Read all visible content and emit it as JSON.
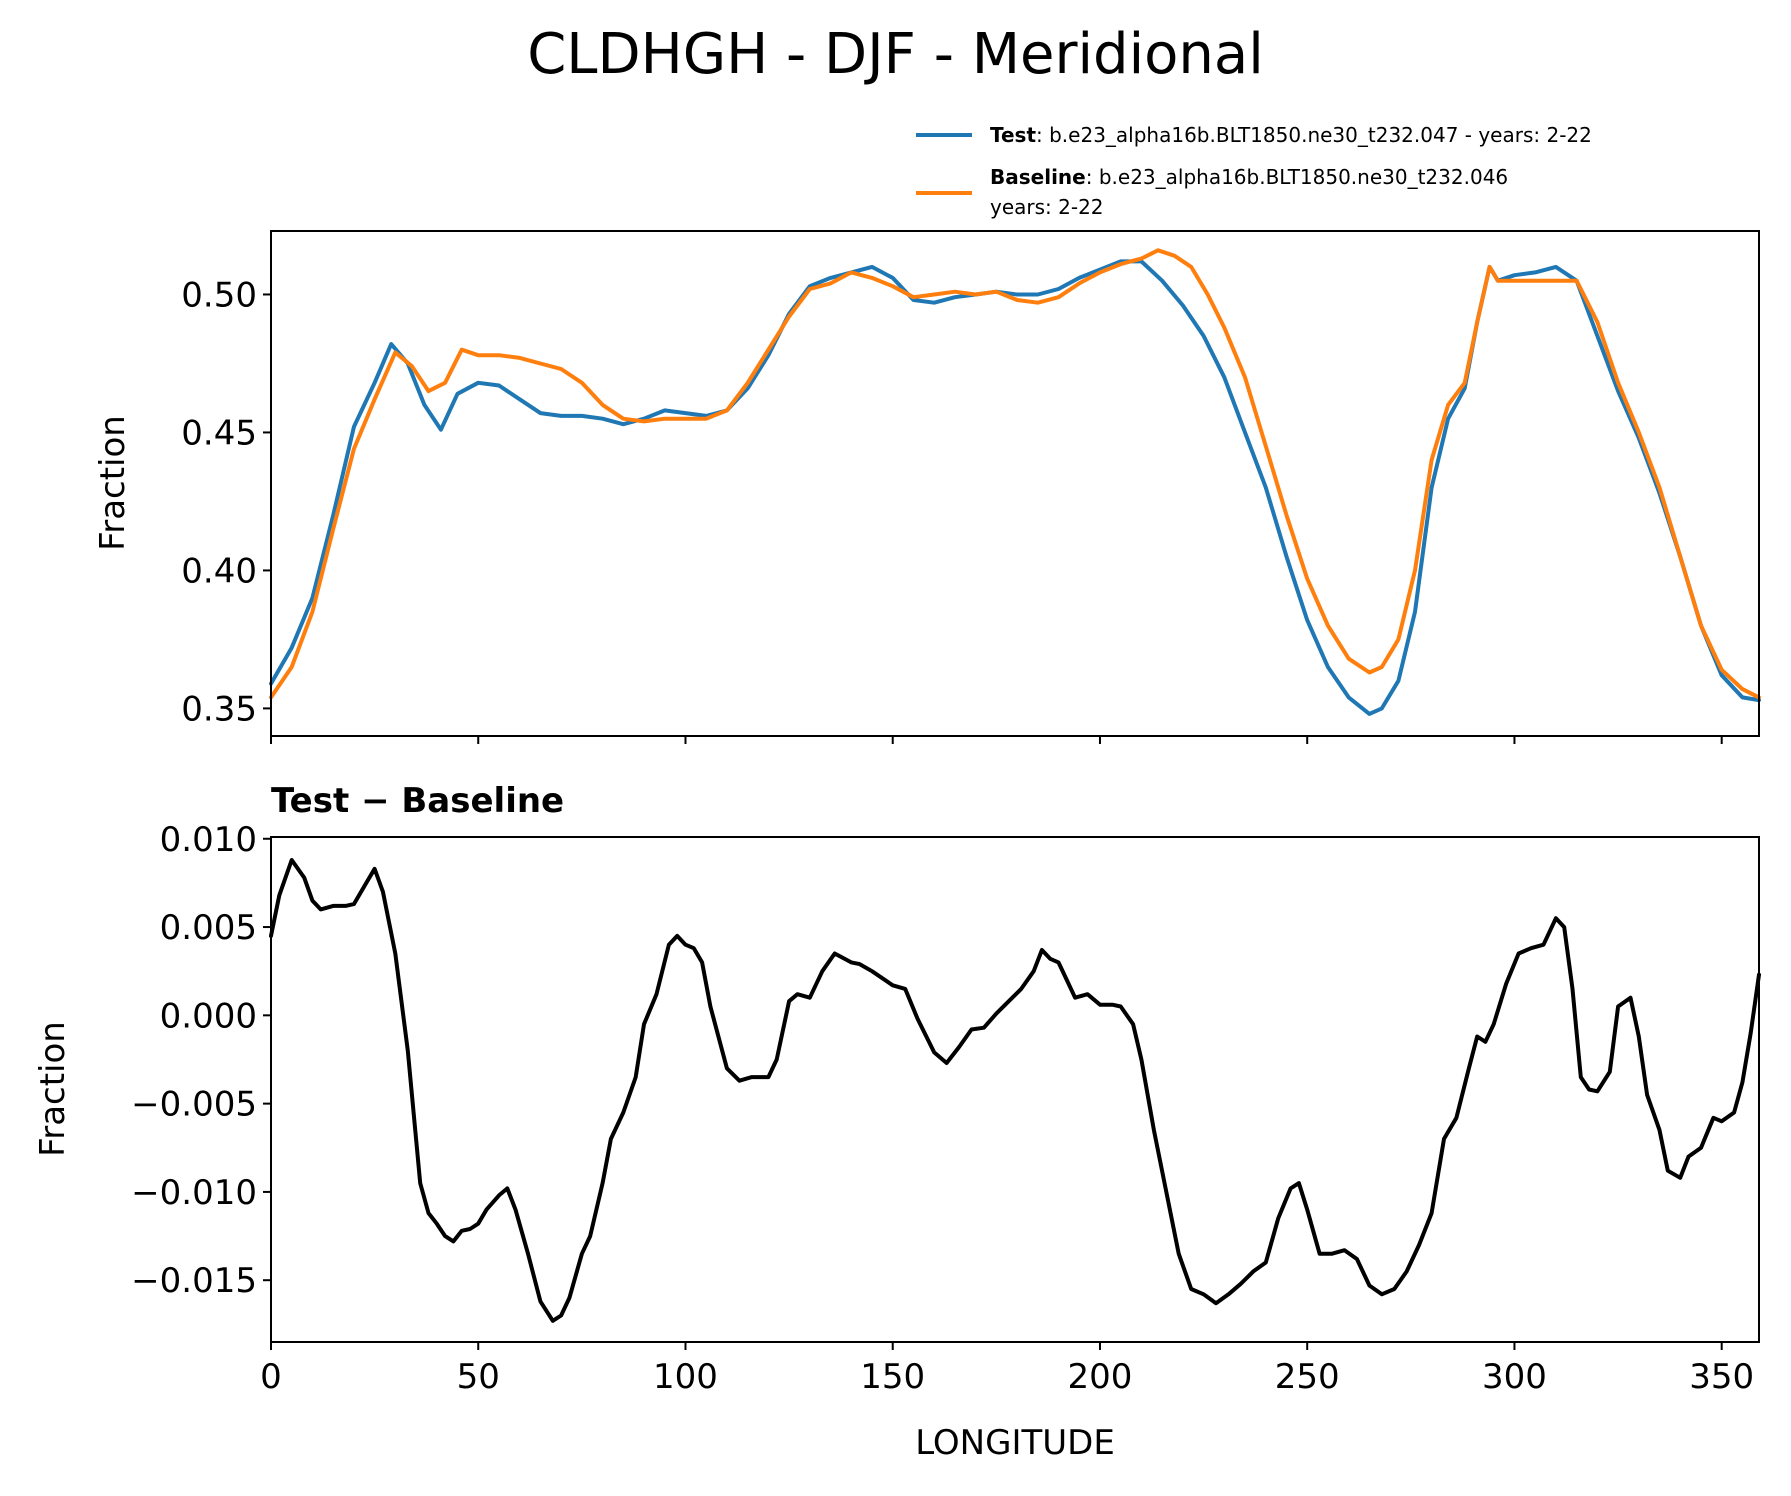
{
  "figure": {
    "title": "CLDHGH - DJF - Meridional"
  },
  "legend": {
    "test_name": "Test",
    "test_desc": ": b.e23_alpha16b.BLT1850.ne30_t232.047 - years: 2-22",
    "baseline_name": "Baseline",
    "baseline_desc": ": b.e23_alpha16b.BLT1850.ne30_t232.046",
    "baseline_desc2": "years: 2-22"
  },
  "colors": {
    "test": "#1f77b4",
    "baseline": "#ff7f0e",
    "diff": "#000000"
  },
  "chart_data": [
    {
      "type": "line",
      "title": "",
      "xlabel": "",
      "ylabel": "Fraction",
      "xlim": [
        0,
        359
      ],
      "ylim": [
        0.34,
        0.523
      ],
      "yticks": [
        "0.35",
        "0.40",
        "0.45",
        "0.50"
      ],
      "ytick_values": [
        0.35,
        0.4,
        0.45,
        0.5
      ],
      "xticks": [
        0,
        50,
        100,
        150,
        200,
        250,
        300,
        350
      ],
      "series": [
        {
          "name": "Test",
          "x": [
            0,
            5,
            10,
            15,
            20,
            25,
            29,
            33,
            37,
            41,
            45,
            50,
            55,
            60,
            65,
            70,
            75,
            80,
            85,
            90,
            95,
            100,
            105,
            110,
            115,
            120,
            125,
            130,
            135,
            140,
            145,
            150,
            155,
            160,
            165,
            170,
            175,
            180,
            185,
            190,
            195,
            200,
            205,
            210,
            215,
            220,
            225,
            230,
            235,
            240,
            245,
            250,
            255,
            260,
            265,
            268,
            272,
            276,
            280,
            284,
            288,
            291,
            294,
            296,
            300,
            305,
            310,
            315,
            320,
            325,
            330,
            335,
            340,
            345,
            350,
            355,
            359
          ],
          "values": [
            0.359,
            0.372,
            0.39,
            0.42,
            0.452,
            0.468,
            0.482,
            0.475,
            0.46,
            0.451,
            0.464,
            0.468,
            0.467,
            0.462,
            0.457,
            0.456,
            0.456,
            0.455,
            0.453,
            0.455,
            0.458,
            0.457,
            0.456,
            0.458,
            0.466,
            0.478,
            0.493,
            0.503,
            0.506,
            0.508,
            0.51,
            0.506,
            0.498,
            0.497,
            0.499,
            0.5,
            0.501,
            0.5,
            0.5,
            0.502,
            0.506,
            0.509,
            0.512,
            0.512,
            0.505,
            0.496,
            0.485,
            0.47,
            0.45,
            0.43,
            0.405,
            0.382,
            0.365,
            0.354,
            0.348,
            0.35,
            0.36,
            0.385,
            0.43,
            0.455,
            0.466,
            0.49,
            0.51,
            0.505,
            0.507,
            0.508,
            0.51,
            0.505,
            0.485,
            0.465,
            0.448,
            0.428,
            0.405,
            0.38,
            0.362,
            0.354,
            0.353
          ]
        },
        {
          "name": "Baseline",
          "x": [
            0,
            5,
            10,
            15,
            20,
            25,
            30,
            34,
            38,
            42,
            46,
            50,
            55,
            60,
            65,
            70,
            75,
            80,
            85,
            90,
            95,
            100,
            105,
            110,
            115,
            120,
            125,
            130,
            135,
            140,
            145,
            150,
            155,
            160,
            165,
            170,
            175,
            180,
            185,
            190,
            195,
            200,
            205,
            210,
            214,
            218,
            222,
            226,
            230,
            235,
            240,
            245,
            250,
            255,
            260,
            265,
            268,
            272,
            276,
            280,
            284,
            288,
            291,
            294,
            296,
            300,
            305,
            310,
            315,
            320,
            325,
            330,
            335,
            340,
            345,
            350,
            355,
            359
          ],
          "values": [
            0.354,
            0.365,
            0.385,
            0.415,
            0.444,
            0.462,
            0.479,
            0.474,
            0.465,
            0.468,
            0.48,
            0.478,
            0.478,
            0.477,
            0.475,
            0.473,
            0.468,
            0.46,
            0.455,
            0.454,
            0.455,
            0.455,
            0.455,
            0.458,
            0.468,
            0.48,
            0.492,
            0.502,
            0.504,
            0.508,
            0.506,
            0.503,
            0.499,
            0.5,
            0.501,
            0.5,
            0.501,
            0.498,
            0.497,
            0.499,
            0.504,
            0.508,
            0.511,
            0.513,
            0.516,
            0.514,
            0.51,
            0.5,
            0.488,
            0.47,
            0.445,
            0.42,
            0.397,
            0.38,
            0.368,
            0.363,
            0.365,
            0.375,
            0.4,
            0.44,
            0.46,
            0.468,
            0.49,
            0.51,
            0.505,
            0.505,
            0.505,
            0.505,
            0.505,
            0.49,
            0.468,
            0.45,
            0.43,
            0.405,
            0.38,
            0.364,
            0.357,
            0.354
          ]
        }
      ]
    },
    {
      "type": "line",
      "title": "Test − Baseline",
      "xlabel": "LONGITUDE",
      "ylabel": "Fraction",
      "xlim": [
        0,
        359
      ],
      "ylim": [
        -0.0185,
        0.0101
      ],
      "yticks": [
        "0.010",
        "0.005",
        "0.000",
        "−0.005",
        "−0.010",
        "−0.015"
      ],
      "ytick_values": [
        0.01,
        0.005,
        0.0,
        -0.005,
        -0.01,
        -0.015
      ],
      "xticks": [
        0,
        50,
        100,
        150,
        200,
        250,
        300,
        350
      ],
      "xtick_labels": [
        "0",
        "50",
        "100",
        "150",
        "200",
        "250",
        "300",
        "350"
      ],
      "series": [
        {
          "name": "Test − Baseline",
          "x": [
            0,
            2,
            5,
            8,
            10,
            12,
            15,
            18,
            20,
            23,
            25,
            27,
            30,
            33,
            36,
            38,
            40,
            42,
            44,
            46,
            48,
            50,
            52,
            55,
            57,
            59,
            62,
            65,
            68,
            70,
            72,
            75,
            77,
            80,
            82,
            85,
            88,
            90,
            93,
            96,
            98,
            100,
            102,
            104,
            106,
            110,
            113,
            116,
            120,
            122,
            125,
            127,
            130,
            133,
            136,
            140,
            142,
            145,
            150,
            153,
            156,
            160,
            163,
            166,
            169,
            172,
            175,
            178,
            181,
            184,
            186,
            188,
            190,
            192,
            194,
            197,
            200,
            203,
            205,
            208,
            210,
            213,
            216,
            219,
            222,
            225,
            228,
            231,
            234,
            237,
            240,
            243,
            246,
            248,
            250,
            253,
            256,
            259,
            262,
            265,
            268,
            271,
            274,
            277,
            280,
            283,
            286,
            289,
            291,
            293,
            295,
            298,
            301,
            304,
            307,
            310,
            312,
            314,
            316,
            318,
            320,
            323,
            325,
            328,
            330,
            332,
            335,
            337,
            340,
            342,
            345,
            348,
            350,
            353,
            355,
            357,
            359
          ],
          "values": [
            0.0045,
            0.0068,
            0.0088,
            0.0078,
            0.0065,
            0.006,
            0.0062,
            0.0062,
            0.0063,
            0.0075,
            0.0083,
            0.007,
            0.0035,
            -0.002,
            -0.0095,
            -0.0112,
            -0.0118,
            -0.0125,
            -0.0128,
            -0.0122,
            -0.0121,
            -0.0118,
            -0.011,
            -0.0102,
            -0.0098,
            -0.011,
            -0.0135,
            -0.0162,
            -0.0173,
            -0.017,
            -0.016,
            -0.0135,
            -0.0125,
            -0.0095,
            -0.007,
            -0.0055,
            -0.0035,
            -0.0005,
            0.0012,
            0.004,
            0.0045,
            0.004,
            0.0038,
            0.003,
            0.0005,
            -0.003,
            -0.0037,
            -0.0035,
            -0.0035,
            -0.0025,
            0.0008,
            0.0012,
            0.001,
            0.0025,
            0.0035,
            0.003,
            0.0029,
            0.0025,
            0.0017,
            0.0015,
            -0.0002,
            -0.0021,
            -0.0027,
            -0.0018,
            -0.0008,
            -0.0007,
            0.0001,
            0.0008,
            0.0015,
            0.0025,
            0.0037,
            0.0032,
            0.003,
            0.002,
            0.001,
            0.0012,
            0.0006,
            0.0006,
            0.0005,
            -0.0005,
            -0.0025,
            -0.0065,
            -0.01,
            -0.0135,
            -0.0155,
            -0.0158,
            -0.0163,
            -0.0158,
            -0.0152,
            -0.0145,
            -0.014,
            -0.0115,
            -0.0098,
            -0.0095,
            -0.011,
            -0.0135,
            -0.0135,
            -0.0133,
            -0.0138,
            -0.0153,
            -0.0158,
            -0.0155,
            -0.0145,
            -0.013,
            -0.0112,
            -0.007,
            -0.0058,
            -0.003,
            -0.0012,
            -0.0015,
            -0.0005,
            0.0018,
            0.0035,
            0.0038,
            0.004,
            0.0055,
            0.005,
            0.0015,
            -0.0035,
            -0.0042,
            -0.0043,
            -0.0032,
            0.0005,
            0.001,
            -0.0012,
            -0.0045,
            -0.0065,
            -0.0088,
            -0.0092,
            -0.008,
            -0.0075,
            -0.0058,
            -0.006,
            -0.0055,
            -0.0038,
            -0.001,
            0.0023
          ]
        }
      ]
    }
  ]
}
